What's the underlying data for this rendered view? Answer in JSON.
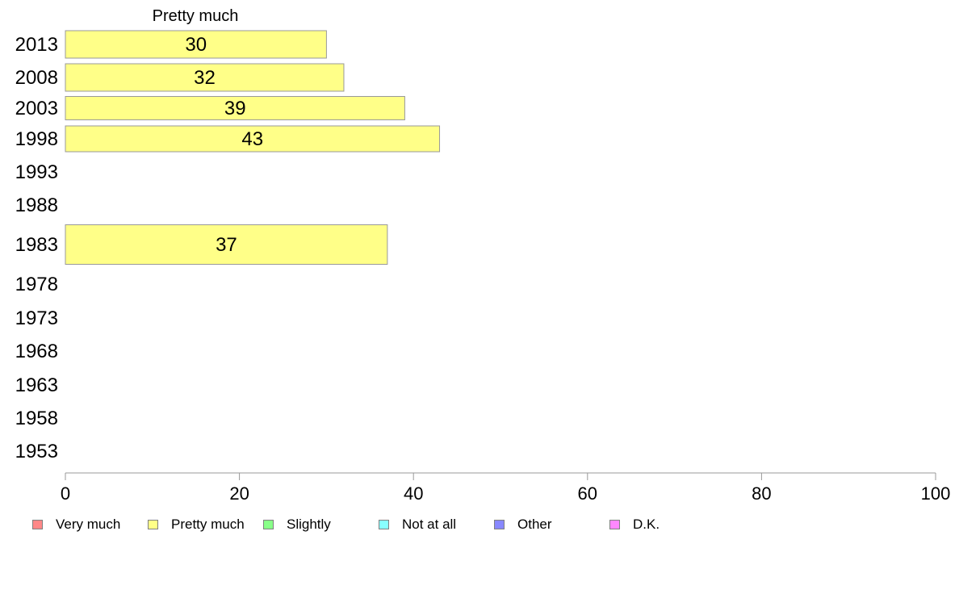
{
  "chart_data": {
    "type": "bar",
    "orientation": "horizontal",
    "title": "Pretty much",
    "categories": [
      "2013",
      "2008",
      "2003",
      "1998",
      "1993",
      "1988",
      "1983",
      "1978",
      "1973",
      "1968",
      "1963",
      "1958",
      "1953"
    ],
    "series": [
      {
        "name": "Pretty much",
        "values": [
          30,
          32,
          39,
          43,
          null,
          null,
          37,
          null,
          null,
          null,
          null,
          null,
          null
        ]
      }
    ],
    "xlim": [
      0,
      100
    ],
    "xticks": [
      "0",
      "20",
      "40",
      "60",
      "80",
      "100"
    ],
    "grid": false,
    "legend_position": "bottom",
    "bar_color": "#ffff88",
    "bar_border_color": "#999999"
  },
  "legend": {
    "items": [
      {
        "label": "Very much",
        "color": "#ff8888"
      },
      {
        "label": "Pretty much",
        "color": "#ffff88"
      },
      {
        "label": "Slightly",
        "color": "#88ff88"
      },
      {
        "label": "Not at all",
        "color": "#88ffff"
      },
      {
        "label": "Other",
        "color": "#8888ff"
      },
      {
        "label": "D.K.",
        "color": "#ff88ff"
      }
    ]
  }
}
